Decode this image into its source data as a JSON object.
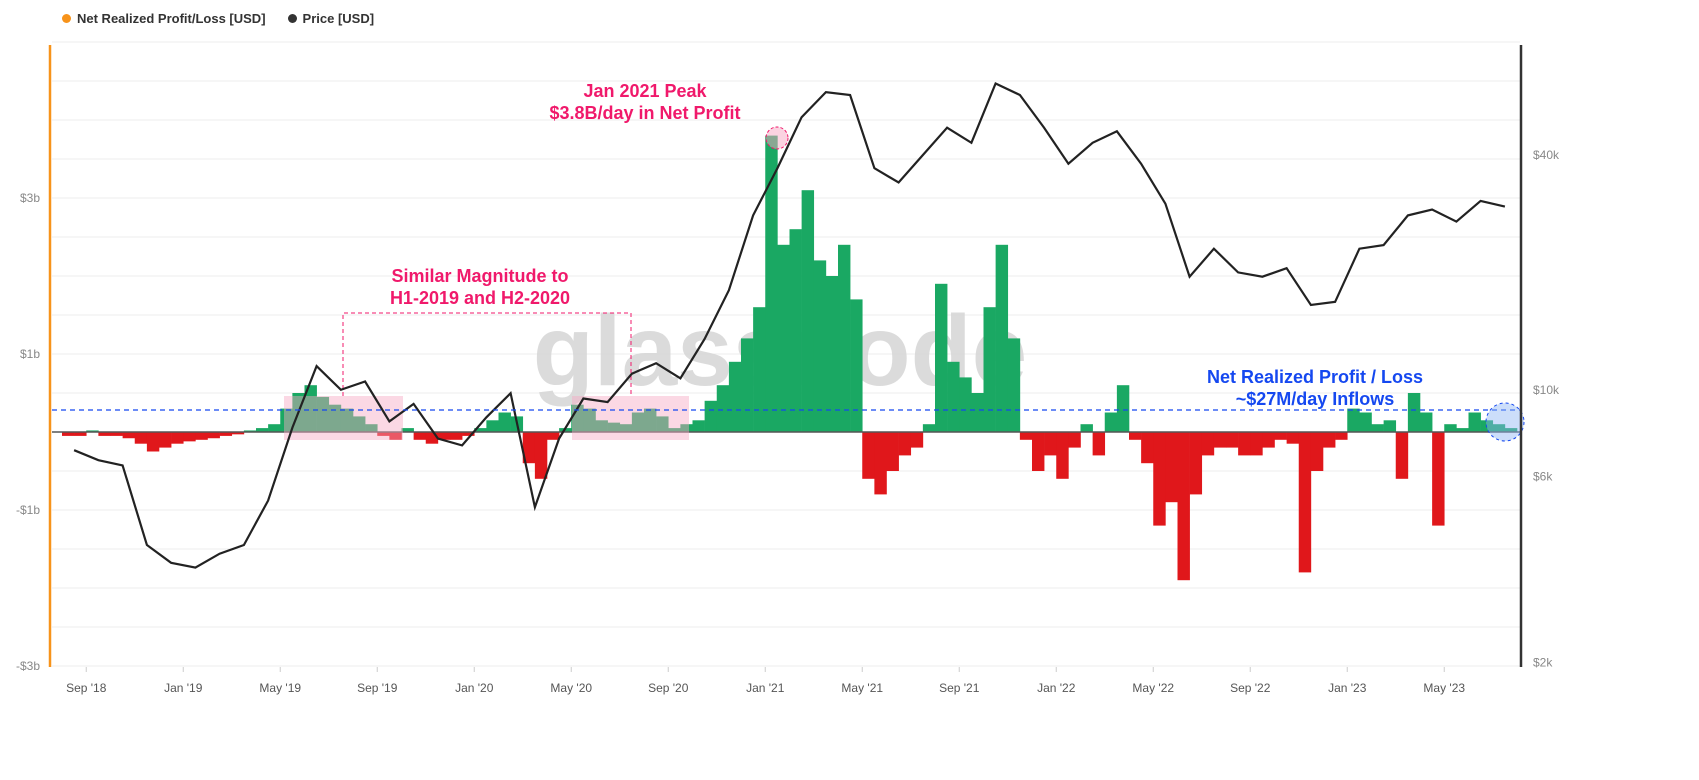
{
  "legend": [
    {
      "label": "Net Realized Profit/Loss [USD]",
      "color": "#f7931a"
    },
    {
      "label": "Price [USD]",
      "color": "#333333"
    }
  ],
  "watermark": "glassnode",
  "annotations": {
    "peak": [
      "Jan 2021 Peak",
      "$3.8B/day in Net Profit"
    ],
    "similar": [
      "Similar Magnitude to",
      "H1-2019 and H2-2020"
    ],
    "current": [
      "Net Realized Profit / Loss",
      "~$27M/day Inflows"
    ]
  },
  "colors": {
    "profit": "#1aa863",
    "loss": "#e0171b",
    "price": "#222222",
    "annotation_pink": "#f0196b",
    "annotation_blue": "#1548f0",
    "left_axis": "#f7931a"
  },
  "chart_data": {
    "type": "bar+line",
    "title": "",
    "x_start": "2018-08",
    "x_step": "half-month",
    "xtick_labels": [
      "Sep '18",
      "Jan '19",
      "May '19",
      "Sep '19",
      "Jan '20",
      "May '20",
      "Sep '20",
      "Jan '21",
      "May '21",
      "Sep '21",
      "Jan '22",
      "May '22",
      "Sep '22",
      "Jan '23",
      "May '23"
    ],
    "left_axis": {
      "label": "Net Realized Profit/Loss [USD]",
      "ticks": [
        "$3b",
        "$1b",
        "-$1b",
        "-$3b"
      ],
      "tick_values": [
        3,
        1,
        -1,
        -3
      ],
      "unit": "billion USD",
      "ylim": [
        -3,
        3
      ]
    },
    "right_axis": {
      "label": "Price [USD]",
      "scale": "log",
      "ticks": [
        "$40k",
        "$10k",
        "$6k",
        "$2k"
      ],
      "tick_values": [
        40000,
        10000,
        6000,
        2000
      ],
      "ylim": [
        2000,
        40000
      ]
    },
    "series": [
      {
        "name": "Net Realized Profit/Loss [USD]",
        "type": "bar",
        "unit": "billion USD",
        "values": [
          -0.05,
          -0.05,
          0.02,
          -0.05,
          -0.05,
          -0.08,
          -0.15,
          -0.25,
          -0.2,
          -0.15,
          -0.12,
          -0.1,
          -0.08,
          -0.05,
          -0.03,
          0.02,
          0.05,
          0.1,
          0.3,
          0.5,
          0.6,
          0.45,
          0.35,
          0.3,
          0.2,
          0.1,
          -0.05,
          -0.1,
          0.05,
          -0.1,
          -0.15,
          -0.1,
          -0.1,
          -0.05,
          0.05,
          0.15,
          0.25,
          0.2,
          -0.4,
          -0.6,
          -0.1,
          0.05,
          0.35,
          0.3,
          0.15,
          0.12,
          0.1,
          0.25,
          0.3,
          0.2,
          0.05,
          0.1,
          0.15,
          0.4,
          0.6,
          0.9,
          1.2,
          1.6,
          3.8,
          2.4,
          2.6,
          3.1,
          2.2,
          2.0,
          2.4,
          1.7,
          -0.6,
          -0.8,
          -0.5,
          -0.3,
          -0.2,
          0.1,
          1.9,
          0.9,
          0.7,
          0.5,
          1.6,
          2.4,
          1.2,
          -0.1,
          -0.5,
          -0.3,
          -0.6,
          -0.2,
          0.1,
          -0.3,
          0.25,
          0.6,
          -0.1,
          -0.4,
          -1.2,
          -0.9,
          -1.9,
          -0.8,
          -0.3,
          -0.2,
          -0.2,
          -0.3,
          -0.3,
          -0.2,
          -0.1,
          -0.15,
          -1.8,
          -0.5,
          -0.2,
          -0.1,
          0.3,
          0.25,
          0.1,
          0.15,
          -0.6,
          0.5,
          0.25,
          -1.2,
          0.1,
          0.05,
          0.25,
          0.15,
          0.1,
          0.05
        ]
      },
      {
        "name": "Price [USD]",
        "type": "line",
        "x_step": "month",
        "values": [
          7000,
          6600,
          6400,
          4000,
          3600,
          3500,
          3800,
          4000,
          5200,
          8000,
          11500,
          10000,
          10500,
          8300,
          9200,
          7500,
          7200,
          8500,
          9800,
          5000,
          7500,
          9500,
          9300,
          11000,
          11700,
          10700,
          13500,
          18000,
          28000,
          37000,
          50000,
          58000,
          57000,
          37000,
          34000,
          40000,
          47000,
          43000,
          61000,
          57000,
          47000,
          38000,
          43000,
          46000,
          38000,
          30000,
          19500,
          23000,
          20000,
          19500,
          20500,
          16500,
          16800,
          23000,
          23500,
          28000,
          29000,
          27000,
          30500,
          29500
        ]
      }
    ],
    "grid": true,
    "legend_position": "top-left"
  }
}
